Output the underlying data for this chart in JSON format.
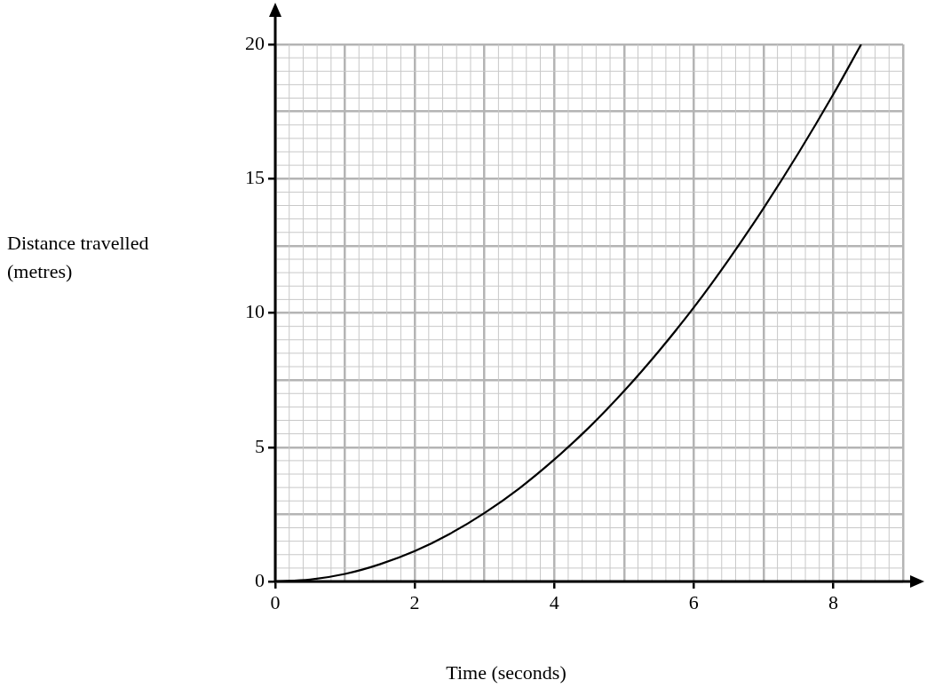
{
  "chart_data": {
    "type": "line",
    "xlabel": "Time (seconds)",
    "ylabel": "Distance travelled\n(metres)",
    "x": [
      0,
      0.5,
      1,
      1.5,
      2,
      2.5,
      3,
      3.5,
      4,
      4.5,
      5,
      5.5,
      6,
      6.5,
      7,
      7.5,
      8,
      8.4
    ],
    "series": [
      {
        "color": "#000000",
        "values": [
          0,
          0.07,
          0.28,
          0.64,
          1.13,
          1.77,
          2.55,
          3.47,
          4.54,
          5.74,
          7.09,
          8.58,
          10.2,
          11.98,
          13.9,
          15.95,
          18.14,
          20
        ]
      }
    ],
    "xlim": [
      0,
      9
    ],
    "ylim": [
      0,
      20
    ],
    "xticks": [
      0,
      {
        "value": 1,
        "label": null
      },
      2,
      {
        "value": 3,
        "label": null
      },
      4,
      {
        "value": 5,
        "label": null
      },
      6,
      {
        "value": 7,
        "label": null
      },
      8,
      {
        "value": 9,
        "label": null
      }
    ],
    "yticks": [
      0,
      {
        "value": 2.5,
        "label": null
      },
      5,
      {
        "value": 7.5,
        "label": null
      },
      10,
      {
        "value": 12.5,
        "label": null
      },
      15,
      {
        "value": 17.5,
        "label": null
      },
      20
    ],
    "grid": true,
    "legend": false,
    "marker": "none",
    "line_style": "solid"
  }
}
